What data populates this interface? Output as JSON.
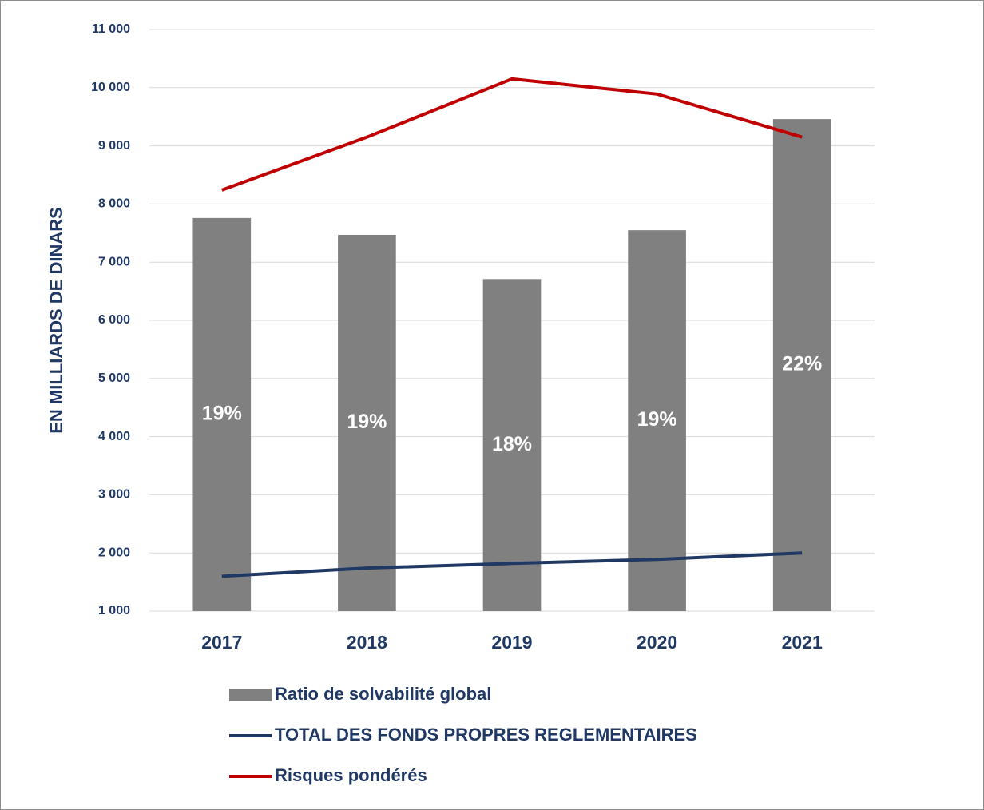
{
  "chart_data": {
    "type": "bar",
    "y_axis_label": "EN MILLIARDS DE DINARS",
    "categories": [
      "2017",
      "2018",
      "2019",
      "2020",
      "2021"
    ],
    "series": [
      {
        "name": "Ratio de solvabilité global",
        "type": "bar",
        "color": "#808080",
        "values": [
          7760,
          7470,
          6710,
          7550,
          9460
        ],
        "labels": [
          "19%",
          "19%",
          "18%",
          "19%",
          "22%"
        ]
      },
      {
        "name": "TOTAL DES FONDS PROPRES REGLEMENTAIRES",
        "type": "line",
        "color": "#1f3864",
        "values": [
          1600,
          1740,
          1820,
          1890,
          2000
        ]
      },
      {
        "name": "Risques pondérés",
        "type": "line",
        "color": "#c00000",
        "values": [
          8240,
          9150,
          10150,
          9890,
          9150
        ]
      }
    ],
    "ylim": [
      1000,
      11000
    ],
    "yticks": [
      {
        "value": 1000,
        "label": "1 000"
      },
      {
        "value": 2000,
        "label": "2 000"
      },
      {
        "value": 3000,
        "label": "3 000"
      },
      {
        "value": 4000,
        "label": "4 000"
      },
      {
        "value": 5000,
        "label": "5 000"
      },
      {
        "value": 6000,
        "label": "6 000"
      },
      {
        "value": 7000,
        "label": "7 000"
      },
      {
        "value": 8000,
        "label": "8 000"
      },
      {
        "value": 9000,
        "label": "9 000"
      },
      {
        "value": 10000,
        "label": "10 000"
      },
      {
        "value": 11000,
        "label": "11 000"
      }
    ],
    "grid": true,
    "legend": "bottom"
  }
}
